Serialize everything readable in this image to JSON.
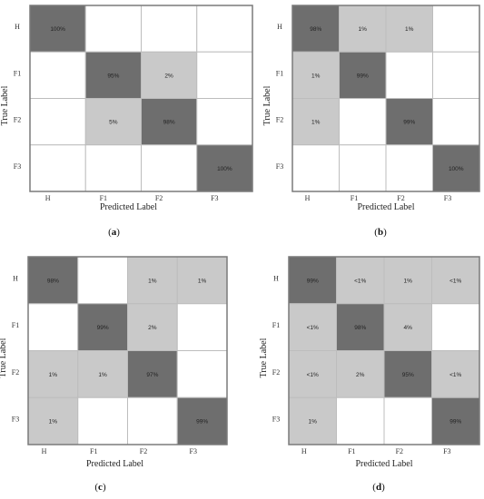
{
  "colors": {
    "dark": "#6e6e6e",
    "light": "#c9c9c9",
    "empty": "#ffffff",
    "grid": "#bdbdbd",
    "frame": "#7a7a7a"
  },
  "chart_data": [
    {
      "type": "heatmap",
      "panel_label": "(a)",
      "letter": "a",
      "xlabel": "Predicted Label",
      "ylabel": "True Label",
      "x_categories": [
        "H",
        "F1",
        "F2",
        "F3"
      ],
      "y_categories": [
        "H",
        "F1",
        "F2",
        "F3"
      ],
      "values": [
        [
          "100%",
          "",
          "",
          ""
        ],
        [
          "",
          "95%",
          "2%",
          ""
        ],
        [
          "",
          "5%",
          "98%",
          ""
        ],
        [
          "",
          "",
          "",
          "100%"
        ]
      ]
    },
    {
      "type": "heatmap",
      "panel_label": "(b)",
      "letter": "b",
      "xlabel": "Predicted Label",
      "ylabel": "True Label",
      "x_categories": [
        "H",
        "F1",
        "F2",
        "F3"
      ],
      "y_categories": [
        "H",
        "F1",
        "F2",
        "F3"
      ],
      "values": [
        [
          "98%",
          "1%",
          "1%",
          ""
        ],
        [
          "1%",
          "99%",
          "",
          ""
        ],
        [
          "1%",
          "",
          "99%",
          ""
        ],
        [
          "",
          "",
          "",
          "100%"
        ]
      ]
    },
    {
      "type": "heatmap",
      "panel_label": "(c)",
      "letter": "c",
      "xlabel": "Predicted Label",
      "ylabel": "True Label",
      "x_categories": [
        "H",
        "F1",
        "F2",
        "F3"
      ],
      "y_categories": [
        "H",
        "F1",
        "F2",
        "F3"
      ],
      "values": [
        [
          "98%",
          "",
          "1%",
          "1%"
        ],
        [
          "",
          "99%",
          "2%",
          ""
        ],
        [
          "1%",
          "1%",
          "97%",
          ""
        ],
        [
          "1%",
          "",
          "",
          "99%"
        ]
      ]
    },
    {
      "type": "heatmap",
      "panel_label": "(d)",
      "letter": "d",
      "xlabel": "Predicted Label",
      "ylabel": "True Label",
      "x_categories": [
        "H",
        "F1",
        "F2",
        "F3"
      ],
      "y_categories": [
        "H",
        "F1",
        "F2",
        "F3"
      ],
      "values": [
        [
          "99%",
          "<1%",
          "1%",
          "<1%"
        ],
        [
          "<1%",
          "98%",
          "4%",
          ""
        ],
        [
          "<1%",
          "2%",
          "95%",
          "<1%"
        ],
        [
          "1%",
          "",
          "",
          "99%"
        ]
      ]
    }
  ]
}
